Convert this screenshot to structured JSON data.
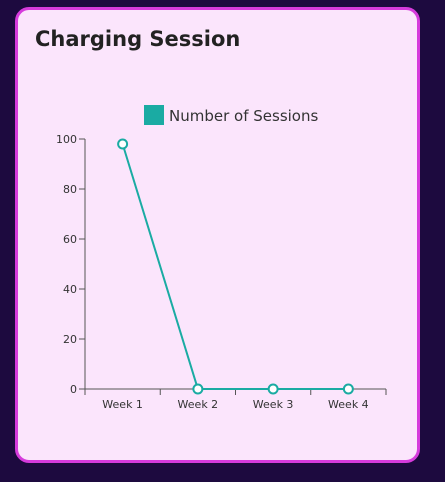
{
  "card": {
    "title": "Charging Session"
  },
  "chart_data": {
    "type": "line",
    "categories": [
      "Week 1",
      "Week 2",
      "Week 3",
      "Week 4"
    ],
    "series": [
      {
        "name": "Number of Sessions",
        "values": [
          98,
          0,
          0,
          0
        ],
        "color": "#1aaba3"
      }
    ],
    "title": "",
    "xlabel": "",
    "ylabel": "",
    "ylim": [
      0,
      100
    ],
    "yticks": [
      0,
      20,
      40,
      60,
      80,
      100
    ],
    "legend_position": "top-center",
    "grid": false
  }
}
